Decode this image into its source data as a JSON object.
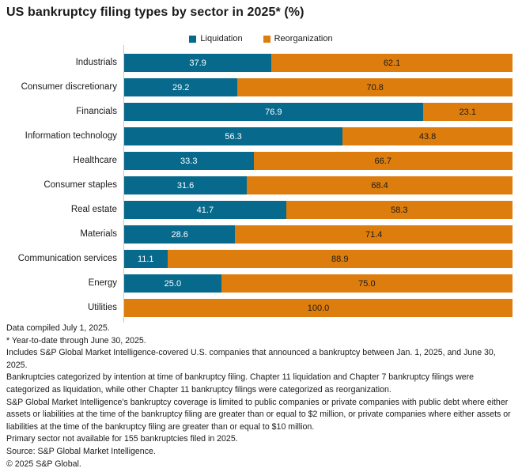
{
  "title": "US bankruptcy filing types by sector in 2025* (%)",
  "colors": {
    "liquidation": "#07698C",
    "reorganization": "#DD7D0E",
    "axis": "#C9C9C9"
  },
  "legend": [
    {
      "label": "Liquidation",
      "color_key": "liquidation"
    },
    {
      "label": "Reorganization",
      "color_key": "reorganization"
    }
  ],
  "chart_data": {
    "type": "bar",
    "stacked": true,
    "orientation": "horizontal",
    "title": "US bankruptcy filing types by sector in 2025* (%)",
    "xlabel": "",
    "ylabel": "",
    "xlim": [
      0,
      100
    ],
    "grid": false,
    "legend_position": "top-center",
    "value_labels": true,
    "categories": [
      "Industrials",
      "Consumer discretionary",
      "Financials",
      "Information technology",
      "Healthcare",
      "Consumer staples",
      "Real estate",
      "Materials",
      "Communication services",
      "Energy",
      "Utilities"
    ],
    "series": [
      {
        "name": "Liquidation",
        "color": "#07698C",
        "values": [
          37.9,
          29.2,
          76.9,
          56.3,
          33.3,
          31.6,
          41.7,
          28.6,
          11.1,
          25.0,
          0
        ],
        "labels": [
          "37.9",
          "29.2",
          "76.9",
          "56.3",
          "33.3",
          "31.6",
          "41.7",
          "28.6",
          "11.1",
          "25.0",
          ""
        ]
      },
      {
        "name": "Reorganization",
        "color": "#DD7D0E",
        "values": [
          62.1,
          70.8,
          23.1,
          43.8,
          66.7,
          68.4,
          58.3,
          71.4,
          88.9,
          75.0,
          100.0
        ],
        "labels": [
          "62.1",
          "70.8",
          "23.1",
          "43.8",
          "66.7",
          "68.4",
          "58.3",
          "71.4",
          "88.9",
          "75.0",
          "100.0"
        ]
      }
    ]
  },
  "footnotes": [
    "Data compiled July 1, 2025.",
    "* Year-to-date through June 30, 2025.",
    "Includes S&P Global Market Intelligence-covered U.S. companies that announced a bankruptcy between Jan. 1, 2025, and June 30, 2025.",
    "Bankruptcies categorized by intention at time of bankruptcy filing. Chapter 11 liquidation and Chapter 7 bankruptcy filings were categorized as liquidation, while other Chapter 11 bankruptcy filings were categorized as reorganization.",
    "S&P Global Market Intelligence's bankruptcy coverage is limited to public companies or private companies with public debt where either assets or liabilities at the time of the bankruptcy filing are greater than or equal to $2 million, or private companies where either assets or liabilities at the time of the bankruptcy filing are greater than or equal to $10 million.",
    "Primary sector not available for 155 bankruptcies filed in 2025.",
    "Source: S&P Global Market Intelligence.",
    "© 2025 S&P Global."
  ]
}
